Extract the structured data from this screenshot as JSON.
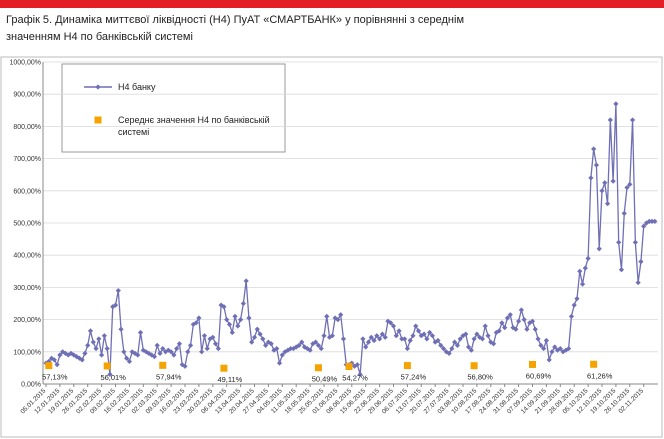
{
  "chart_data": {
    "type": "line",
    "title": "Графік 5. Динаміка миттєвої ліквідності (Н4) ПуАТ «СМАРТБАНК» у порівнянні з середнім значенням Н4 по банківській системі",
    "categories": [
      "05.01.2015",
      null,
      null,
      null,
      null,
      "12.01.2015",
      null,
      null,
      null,
      null,
      "19.01.2015",
      null,
      null,
      null,
      null,
      "26.01.2015",
      null,
      null,
      null,
      null,
      "02.02.2015",
      null,
      null,
      null,
      null,
      "09.02.2015",
      null,
      null,
      null,
      null,
      "16.02.2015",
      null,
      null,
      null,
      null,
      "23.02.2015",
      null,
      null,
      null,
      null,
      "02.03.2015",
      null,
      null,
      null,
      null,
      "09.03.2015",
      null,
      null,
      null,
      null,
      "16.03.2015",
      null,
      null,
      null,
      null,
      "23.03.2015",
      null,
      null,
      null,
      null,
      "30.03.2015",
      null,
      null,
      null,
      null,
      "06.04.2015",
      null,
      null,
      null,
      null,
      "13.04.2015",
      null,
      null,
      null,
      null,
      "20.04.2015",
      null,
      null,
      null,
      null,
      "27.04.2015",
      null,
      null,
      null,
      null,
      "04.05.2015",
      null,
      null,
      null,
      null,
      "11.05.2015",
      null,
      null,
      null,
      null,
      "18.05.2015",
      null,
      null,
      null,
      null,
      "25.05.2015",
      null,
      null,
      null,
      null,
      "01.06.2015",
      null,
      null,
      null,
      null,
      "08.06.2015",
      null,
      null,
      null,
      null,
      "15.06.2015",
      null,
      null,
      null,
      null,
      "22.06.2015",
      null,
      null,
      null,
      null,
      "29.06.2015",
      null,
      null,
      null,
      null,
      "06.07.2015",
      null,
      null,
      null,
      null,
      "13.07.2015",
      null,
      null,
      null,
      null,
      "20.07.2015",
      null,
      null,
      null,
      null,
      "27.07.2015",
      null,
      null,
      null,
      null,
      "03.08.2015",
      null,
      null,
      null,
      null,
      "10.08.2015",
      null,
      null,
      null,
      null,
      "17.08.2015",
      null,
      null,
      null,
      null,
      "24.08.2015",
      null,
      null,
      null,
      null,
      "31.08.2015",
      null,
      null,
      null,
      null,
      "07.09.2015",
      null,
      null,
      null,
      null,
      "14.09.2015",
      null,
      null,
      null,
      null,
      "21.09.2015",
      null,
      null,
      null,
      null,
      "28.09.2015",
      null,
      null,
      null,
      null,
      "05.10.2015",
      null,
      null,
      null,
      null,
      "12.10.2015",
      null,
      null,
      null,
      null,
      "19.10.2015",
      null,
      null,
      null,
      null,
      "26.10.2015",
      null,
      null,
      null,
      null,
      "02.11.2015",
      null,
      null,
      null,
      null
    ],
    "series": [
      {
        "name": "Н4 банку",
        "color": "#6f6fb5",
        "marker": "diamond",
        "values": [
          65,
          70,
          80,
          75,
          60,
          90,
          100,
          95,
          90,
          95,
          90,
          85,
          80,
          75,
          95,
          120,
          165,
          130,
          110,
          140,
          90,
          150,
          110,
          30,
          240,
          245,
          290,
          170,
          100,
          80,
          70,
          100,
          95,
          90,
          160,
          105,
          100,
          95,
          90,
          85,
          120,
          95,
          110,
          100,
          105,
          100,
          90,
          110,
          125,
          60,
          55,
          100,
          120,
          185,
          190,
          205,
          100,
          150,
          110,
          140,
          145,
          125,
          110,
          245,
          240,
          200,
          185,
          160,
          210,
          180,
          200,
          250,
          320,
          205,
          130,
          145,
          170,
          155,
          140,
          120,
          130,
          125,
          105,
          110,
          65,
          90,
          100,
          105,
          110,
          110,
          115,
          120,
          130,
          115,
          110,
          105,
          125,
          130,
          120,
          110,
          150,
          210,
          145,
          150,
          205,
          200,
          215,
          140,
          60,
          60,
          65,
          55,
          60,
          30,
          140,
          115,
          130,
          145,
          135,
          150,
          140,
          155,
          145,
          195,
          190,
          180,
          150,
          165,
          140,
          140,
          110,
          135,
          150,
          180,
          165,
          150,
          155,
          140,
          160,
          150,
          130,
          135,
          120,
          110,
          100,
          95,
          110,
          130,
          120,
          140,
          150,
          155,
          115,
          105,
          140,
          155,
          145,
          140,
          180,
          150,
          130,
          125,
          160,
          165,
          190,
          175,
          205,
          215,
          175,
          170,
          195,
          230,
          200,
          170,
          190,
          195,
          170,
          140,
          120,
          110,
          135,
          75,
          100,
          115,
          105,
          110,
          100,
          105,
          110,
          210,
          245,
          265,
          350,
          310,
          360,
          390,
          640,
          730,
          680,
          420,
          600,
          625,
          560,
          820,
          630,
          870,
          440,
          355,
          530,
          610,
          620,
          820,
          440,
          315,
          380,
          490,
          500,
          505,
          505,
          505
        ]
      },
      {
        "name": "Середнє значення Н4 по банківській системі",
        "color": "#f5a300",
        "marker": "square",
        "values": [
          null,
          57.13,
          null,
          null,
          null,
          null,
          null,
          null,
          null,
          null,
          null,
          null,
          null,
          null,
          null,
          null,
          null,
          null,
          null,
          null,
          null,
          null,
          56.01,
          null,
          null,
          null,
          null,
          null,
          null,
          null,
          null,
          null,
          null,
          null,
          null,
          null,
          null,
          null,
          null,
          null,
          null,
          null,
          57.94,
          null,
          null,
          null,
          null,
          null,
          null,
          null,
          null,
          null,
          null,
          null,
          null,
          null,
          null,
          null,
          null,
          null,
          null,
          null,
          null,
          null,
          49.11,
          null,
          null,
          null,
          null,
          null,
          null,
          null,
          null,
          null,
          null,
          null,
          null,
          null,
          null,
          null,
          null,
          null,
          null,
          null,
          null,
          null,
          null,
          null,
          null,
          null,
          null,
          null,
          null,
          null,
          null,
          null,
          null,
          null,
          50.49,
          null,
          null,
          null,
          null,
          null,
          null,
          null,
          null,
          null,
          null,
          54.27,
          null,
          null,
          null,
          null,
          null,
          null,
          null,
          null,
          null,
          null,
          null,
          null,
          null,
          null,
          null,
          null,
          null,
          null,
          null,
          null,
          57.24,
          null,
          null,
          null,
          null,
          null,
          null,
          null,
          null,
          null,
          null,
          null,
          null,
          null,
          null,
          null,
          null,
          null,
          null,
          null,
          null,
          null,
          null,
          null,
          56.8,
          null,
          null,
          null,
          null,
          null,
          null,
          null,
          null,
          null,
          null,
          null,
          null,
          null,
          null,
          null,
          null,
          null,
          null,
          null,
          null,
          60.69,
          null,
          null,
          null,
          null,
          null,
          null,
          null,
          null,
          null,
          null,
          null,
          null,
          null,
          null,
          null,
          null,
          null,
          null,
          null,
          null,
          null,
          61.26,
          null,
          null,
          null,
          null,
          null,
          null,
          null,
          null,
          null,
          null,
          null,
          null,
          null,
          null,
          null,
          null,
          null,
          null,
          null,
          null,
          null,
          null
        ],
        "value_labels": [
          null,
          "57,13%",
          null,
          null,
          null,
          null,
          null,
          null,
          null,
          null,
          null,
          null,
          null,
          null,
          null,
          null,
          null,
          null,
          null,
          null,
          null,
          null,
          "56,01%",
          null,
          null,
          null,
          null,
          null,
          null,
          null,
          null,
          null,
          null,
          null,
          null,
          null,
          null,
          null,
          null,
          null,
          null,
          null,
          "57,94%",
          null,
          null,
          null,
          null,
          null,
          null,
          null,
          null,
          null,
          null,
          null,
          null,
          null,
          null,
          null,
          null,
          null,
          null,
          null,
          null,
          null,
          "49,11%",
          null,
          null,
          null,
          null,
          null,
          null,
          null,
          null,
          null,
          null,
          null,
          null,
          null,
          null,
          null,
          null,
          null,
          null,
          null,
          null,
          null,
          null,
          null,
          null,
          null,
          null,
          null,
          null,
          null,
          null,
          null,
          null,
          null,
          "50,49%",
          null,
          null,
          null,
          null,
          null,
          null,
          null,
          null,
          null,
          null,
          "54,27%",
          null,
          null,
          null,
          null,
          null,
          null,
          null,
          null,
          null,
          null,
          null,
          null,
          null,
          null,
          null,
          null,
          null,
          null,
          null,
          null,
          "57,24%",
          null,
          null,
          null,
          null,
          null,
          null,
          null,
          null,
          null,
          null,
          null,
          null,
          null,
          null,
          null,
          null,
          null,
          null,
          null,
          null,
          null,
          null,
          null,
          "56,80%",
          null,
          null,
          null,
          null,
          null,
          null,
          null,
          null,
          null,
          null,
          null,
          null,
          null,
          null,
          null,
          null,
          null,
          null,
          null,
          null,
          "60,69%",
          null,
          null,
          null,
          null,
          null,
          null,
          null,
          null,
          null,
          null,
          null,
          null,
          null,
          null,
          null,
          null,
          null,
          null,
          null,
          null,
          null,
          "61,26%",
          null,
          null,
          null,
          null,
          null,
          null,
          null,
          null,
          null,
          null,
          null,
          null,
          null,
          null,
          null,
          null,
          null,
          null,
          null,
          null,
          null,
          null
        ]
      }
    ],
    "ylim": [
      0,
      1000
    ],
    "yticks": [
      {
        "value": 0,
        "label": "0,00%"
      },
      {
        "value": 100,
        "label": "100,00%"
      },
      {
        "value": 200,
        "label": "200,00%"
      },
      {
        "value": 300,
        "label": "300,00%"
      },
      {
        "value": 400,
        "label": "400,00%"
      },
      {
        "value": 500,
        "label": "500,00%"
      },
      {
        "value": 600,
        "label": "600,00%"
      },
      {
        "value": 700,
        "label": "700,00%"
      },
      {
        "value": 800,
        "label": "800,00%"
      },
      {
        "value": 900,
        "label": "900,00%"
      },
      {
        "value": 1000,
        "label": "1000,00%"
      }
    ],
    "grid": true,
    "legend": "upper left"
  }
}
